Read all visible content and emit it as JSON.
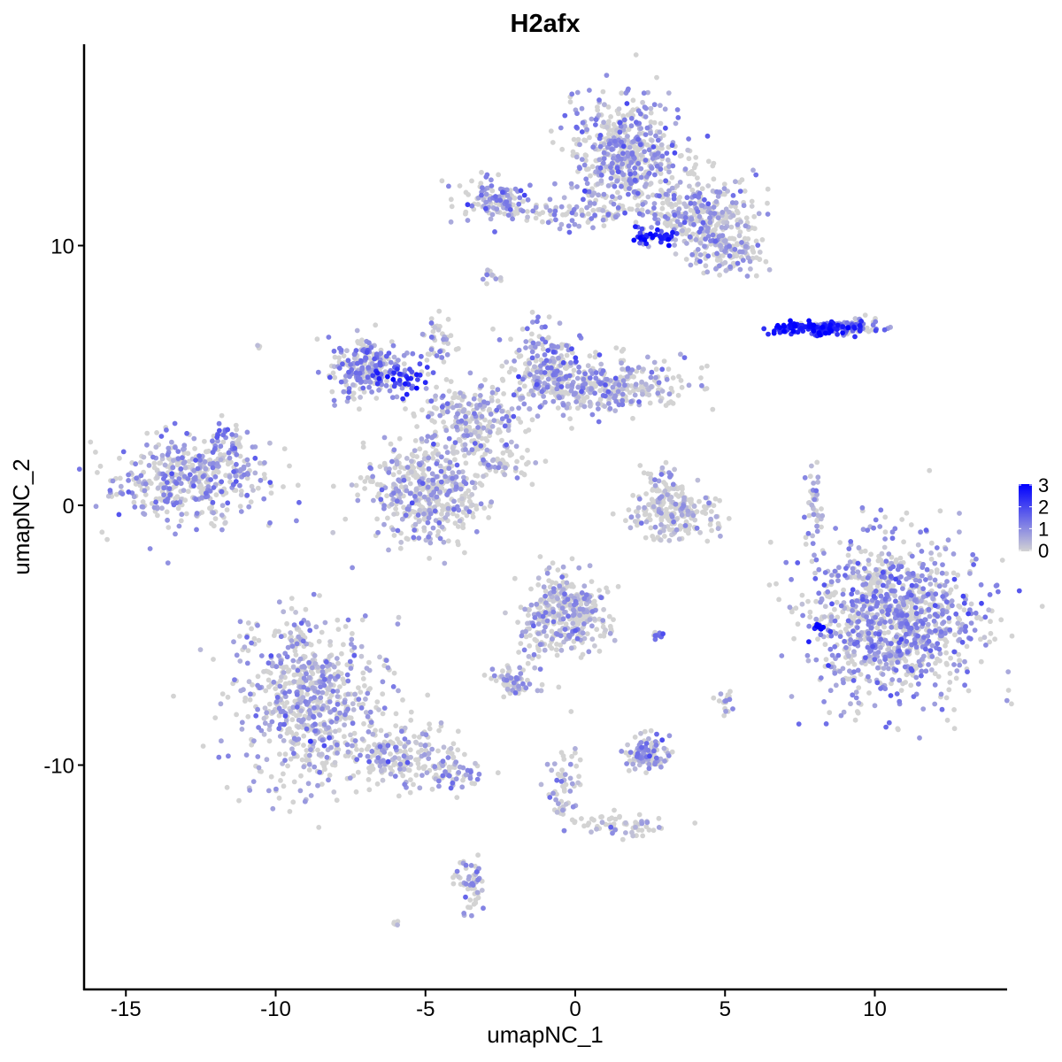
{
  "chart_data": {
    "type": "scatter",
    "title": "H2afx",
    "xlabel": "umapNC_1",
    "ylabel": "umapNC_2",
    "xlim": [
      -16.4,
      14.4
    ],
    "ylim": [
      -18.6,
      17.7
    ],
    "xticks": [
      -15,
      -10,
      -5,
      0,
      5,
      10
    ],
    "yticks": [
      -10,
      0,
      10
    ],
    "grid": false,
    "legend": {
      "position": "right",
      "type": "colorbar",
      "ticks": [
        0,
        1,
        2,
        3
      ],
      "range": [
        0,
        3
      ]
    },
    "colors": {
      "low": "#D3D3D3",
      "high": "#0000FF"
    },
    "clusters": [
      {
        "x": -12.85,
        "y": 1.0,
        "sx": 1.3,
        "sy": 0.8,
        "n": 450,
        "expr": 0.8
      },
      {
        "x": -11.6,
        "y": 2.5,
        "sx": 0.3,
        "sy": 0.4,
        "n": 40,
        "expr": 1.2
      },
      {
        "x": -8.9,
        "y": -7.6,
        "sx": 1.2,
        "sy": 1.6,
        "n": 700,
        "expr": 0.7
      },
      {
        "x": -5.8,
        "y": -9.6,
        "sx": 1.0,
        "sy": 0.6,
        "n": 200,
        "expr": 0.6
      },
      {
        "x": -4.0,
        "y": -10.4,
        "sx": 0.4,
        "sy": 0.3,
        "n": 50,
        "expr": 0.8
      },
      {
        "x": -3.5,
        "y": -14.5,
        "sx": 0.25,
        "sy": 0.6,
        "n": 60,
        "expr": 0.8
      },
      {
        "x": 1.7,
        "y": 13.4,
        "sx": 0.9,
        "sy": 1.1,
        "n": 550,
        "expr": 0.8
      },
      {
        "x": -2.7,
        "y": 11.7,
        "sx": 0.6,
        "sy": 0.4,
        "n": 120,
        "expr": 0.9
      },
      {
        "x": 0.0,
        "y": 11.2,
        "sx": 1.2,
        "sy": 0.25,
        "n": 80,
        "expr": 0.9
      },
      {
        "x": 4.2,
        "y": 11.2,
        "sx": 0.9,
        "sy": 0.7,
        "n": 300,
        "expr": 0.7
      },
      {
        "x": 5.1,
        "y": 9.7,
        "sx": 0.6,
        "sy": 0.4,
        "n": 120,
        "expr": 0.5
      },
      {
        "x": 2.6,
        "y": 10.3,
        "sx": 0.4,
        "sy": 0.15,
        "n": 40,
        "expr": 2.4
      },
      {
        "x": -2.8,
        "y": 8.8,
        "sx": 0.15,
        "sy": 0.15,
        "n": 12,
        "expr": 1.0
      },
      {
        "x": -6.9,
        "y": 5.3,
        "sx": 0.7,
        "sy": 0.6,
        "n": 250,
        "expr": 1.0
      },
      {
        "x": -5.7,
        "y": 4.9,
        "sx": 0.5,
        "sy": 0.3,
        "n": 40,
        "expr": 2.2
      },
      {
        "x": -5.0,
        "y": 0.5,
        "sx": 1.0,
        "sy": 0.9,
        "n": 450,
        "expr": 0.6
      },
      {
        "x": -3.5,
        "y": 3.3,
        "sx": 0.8,
        "sy": 0.8,
        "n": 250,
        "expr": 0.6
      },
      {
        "x": -1.0,
        "y": 5.2,
        "sx": 0.6,
        "sy": 0.8,
        "n": 200,
        "expr": 0.9
      },
      {
        "x": 1.0,
        "y": 4.6,
        "sx": 1.3,
        "sy": 0.5,
        "n": 300,
        "expr": 0.7
      },
      {
        "x": -4.5,
        "y": 6.5,
        "sx": 0.3,
        "sy": 0.6,
        "n": 40,
        "expr": 0.6
      },
      {
        "x": -2.2,
        "y": 1.5,
        "sx": 0.5,
        "sy": 0.3,
        "n": 40,
        "expr": 0.3
      },
      {
        "x": 3.3,
        "y": -0.3,
        "sx": 0.7,
        "sy": 0.5,
        "n": 220,
        "expr": 0.3
      },
      {
        "x": 2.9,
        "y": 0.8,
        "sx": 0.3,
        "sy": 0.4,
        "n": 40,
        "expr": 0.4
      },
      {
        "x": 10.6,
        "y": -4.4,
        "sx": 1.4,
        "sy": 1.5,
        "n": 1100,
        "expr": 0.9
      },
      {
        "x": 8.1,
        "y": -4.7,
        "sx": 0.08,
        "sy": 0.1,
        "n": 12,
        "expr": 3.0
      },
      {
        "x": 8.0,
        "y": 6.8,
        "sx": 0.8,
        "sy": 0.12,
        "n": 120,
        "expr": 2.5
      },
      {
        "x": 9.4,
        "y": 6.9,
        "sx": 0.6,
        "sy": 0.15,
        "n": 60,
        "expr": 1.2
      },
      {
        "x": 8.0,
        "y": 0.1,
        "sx": 0.15,
        "sy": 0.8,
        "n": 40,
        "expr": 0.4
      },
      {
        "x": -0.3,
        "y": -4.1,
        "sx": 0.7,
        "sy": 0.7,
        "n": 350,
        "expr": 0.5
      },
      {
        "x": -2.1,
        "y": -6.8,
        "sx": 0.35,
        "sy": 0.25,
        "n": 70,
        "expr": 0.7
      },
      {
        "x": -1.4,
        "y": -5.7,
        "sx": 0.3,
        "sy": 0.6,
        "n": 30,
        "expr": 0.7
      },
      {
        "x": 2.4,
        "y": -9.5,
        "sx": 0.4,
        "sy": 0.3,
        "n": 120,
        "expr": 0.8
      },
      {
        "x": -0.4,
        "y": -11.0,
        "sx": 0.3,
        "sy": 0.8,
        "n": 60,
        "expr": 0.6
      },
      {
        "x": 1.5,
        "y": -12.3,
        "sx": 0.7,
        "sy": 0.2,
        "n": 60,
        "expr": 0.3
      },
      {
        "x": 5.0,
        "y": -7.5,
        "sx": 0.15,
        "sy": 0.2,
        "n": 20,
        "expr": 0.7
      },
      {
        "x": 2.8,
        "y": -5.0,
        "sx": 0.15,
        "sy": 0.08,
        "n": 10,
        "expr": 1.2
      },
      {
        "x": -10.6,
        "y": 6.1,
        "sx": 0.05,
        "sy": 0.05,
        "n": 3,
        "expr": 0.0
      },
      {
        "x": -6.0,
        "y": -16.1,
        "sx": 0.1,
        "sy": 0.05,
        "n": 5,
        "expr": 0.5
      }
    ]
  }
}
